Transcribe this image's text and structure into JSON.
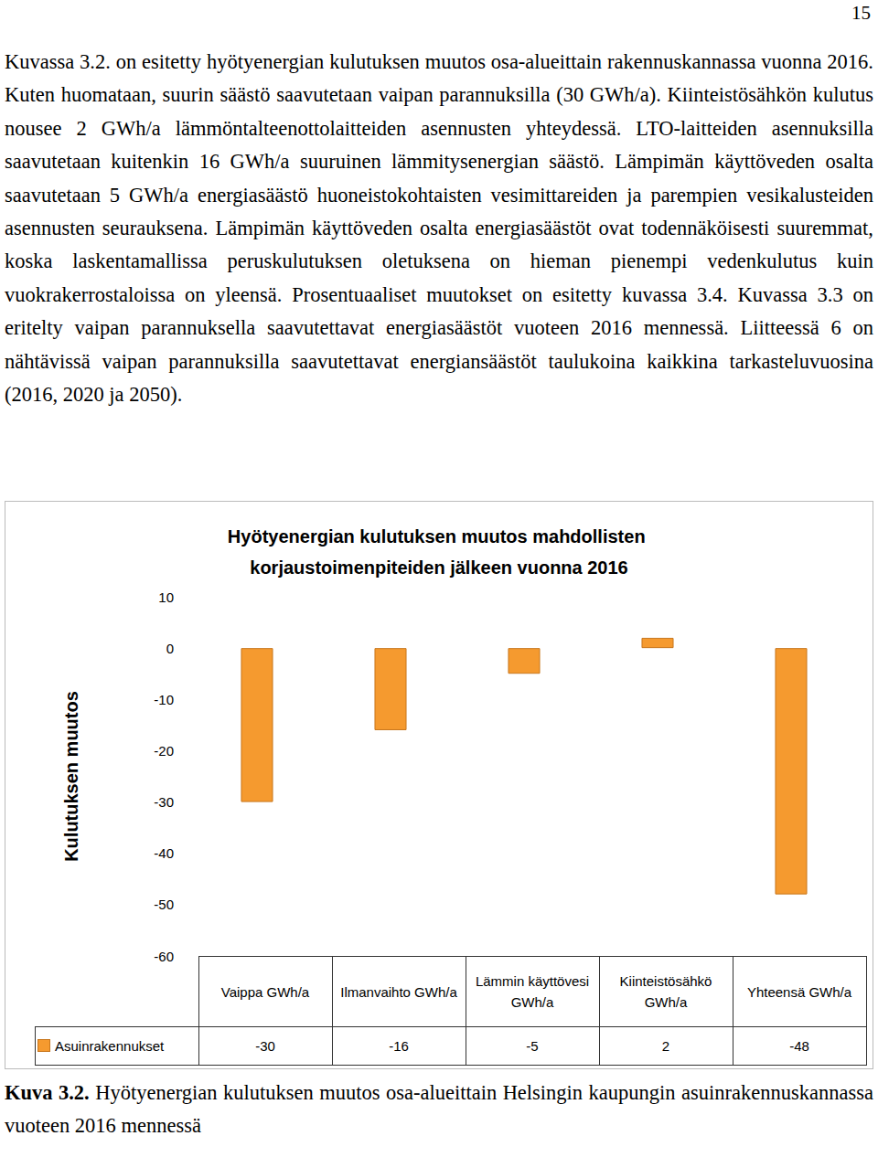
{
  "document": {
    "page_number": "15",
    "paragraph": "Kuvassa 3.2. on esitetty hyötyenergian kulutuksen muutos osa-alueittain rakennuskannassa vuonna 2016. Kuten huomataan, suurin säästö saavutetaan vaipan parannuksilla (30 GWh/a). Kiinteistösähkön kulutus nousee 2 GWh/a lämmöntalteenottolaitteiden asennusten yhteydessä. LTO-laitteiden asennuksilla saavutetaan kuitenkin 16 GWh/a suuruinen lämmitysenergian säästö. Lämpimän käyttöveden osalta saavutetaan 5 GWh/a energiasäästö huoneistokohtaisten vesimittareiden ja parempien vesikalusteiden asennusten seurauksena. Lämpimän käyttöveden osalta energiasäästöt ovat todennäköisesti suuremmat, koska laskentamallissa peruskulutuksen oletuksena on hieman pienempi vedenkulutus kuin vuokrakerrostaloissa on yleensä. Prosentuaaliset muutokset on esitetty kuvassa 3.4. Kuvassa 3.3 on eritelty vaipan parannuksella saavutettavat energiasäästöt vuoteen 2016 mennessä. Liitteessä 6 on nähtävissä vaipan parannuksilla saavutettavat energiansäästöt taulukoina kaikkina tarkasteluvuosina (2016, 2020 ja 2050).",
    "caption": {
      "label": "Kuva 3.2.",
      "text": "Hyötyenergian kulutuksen muutos osa-alueittain Helsingin kaupungin asuinrakennuskannassa vuoteen 2016 mennessä"
    }
  },
  "chart_data": {
    "type": "bar",
    "title": "Hyötyenergian kulutuksen muutos mahdollisten korjaustoimenpiteiden jälkeen vuonna 2016",
    "y_label": "Kulutuksen muutos",
    "categories": [
      "Vaippa GWh/a",
      "Ilmanvaihto GWh/a",
      "Lämmin käyttövesi GWh/a",
      "Kiinteistösähkö GWh/a",
      "Yhteensä GWh/a"
    ],
    "series": [
      {
        "name": "Asuinrakennukset",
        "color": "#f59a2f",
        "values": [
          -30,
          -16,
          -5,
          2,
          -48
        ]
      }
    ],
    "ylim": [
      -60,
      10
    ],
    "yticks": [
      -60,
      -50,
      -40,
      -30,
      -20,
      -10,
      0,
      10
    ],
    "grid": false
  }
}
